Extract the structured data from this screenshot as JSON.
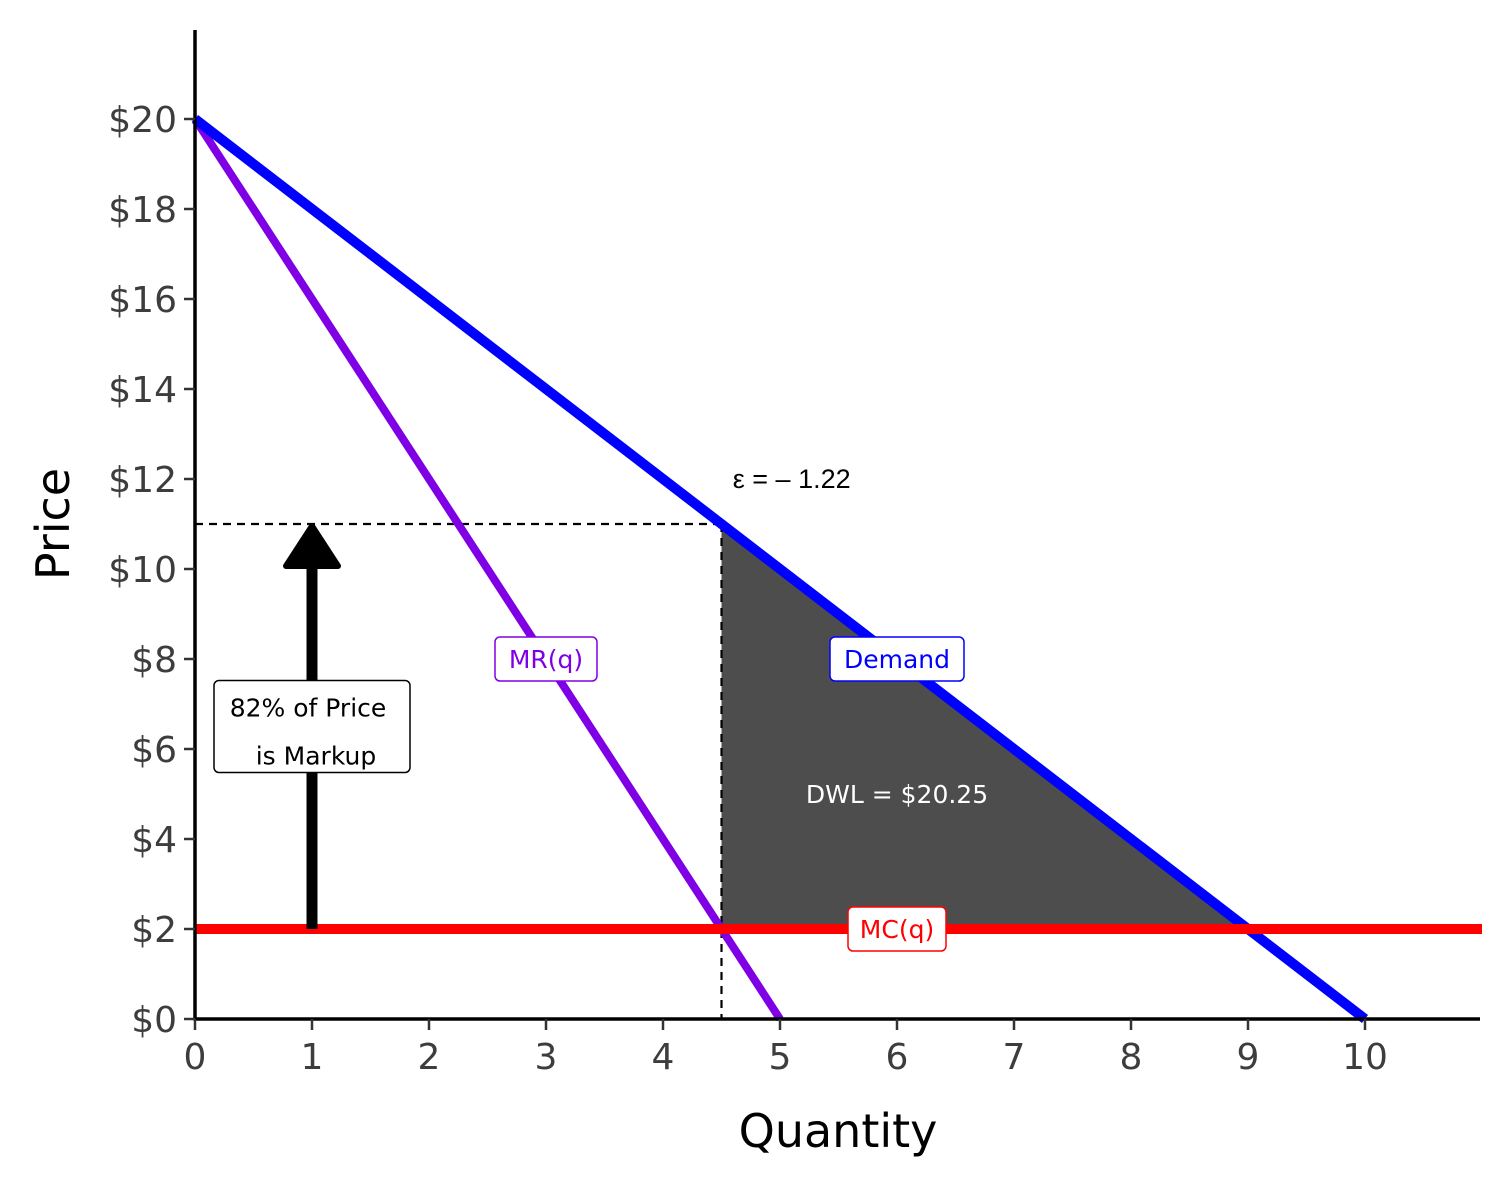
{
  "chart_data": {
    "type": "line",
    "xlabel": "Quantity",
    "ylabel": "Price",
    "xlim": [
      0,
      11
    ],
    "ylim": [
      0,
      22
    ],
    "x_ticks": [
      "0",
      "1",
      "2",
      "3",
      "4",
      "5",
      "6",
      "7",
      "8",
      "9",
      "10"
    ],
    "y_ticks": [
      "$0",
      "$2",
      "$4",
      "$6",
      "$8",
      "$10",
      "$12",
      "$14",
      "$16",
      "$18",
      "$20"
    ],
    "grid": false,
    "series": [
      {
        "key": "demand",
        "color": "#0000FF",
        "x": [
          0,
          10
        ],
        "y": [
          20,
          0
        ]
      },
      {
        "key": "mr",
        "color": "#8000E6",
        "x": [
          0,
          5
        ],
        "y": [
          20,
          0
        ]
      },
      {
        "key": "mc",
        "color": "#FF0000",
        "x": [
          0,
          11
        ],
        "y": [
          2,
          2
        ]
      }
    ],
    "dwl_region": {
      "color": "#4D4D4D",
      "points": [
        [
          4.5,
          11
        ],
        [
          9,
          2
        ],
        [
          4.5,
          2
        ]
      ]
    },
    "monopoly_point": {
      "q": 4.5,
      "p": 11
    },
    "markup_arrow": {
      "x": 1,
      "from": 2,
      "to": 11
    },
    "labels": {
      "demand": {
        "text": "Demand",
        "x": 6,
        "y": 8,
        "color": "#0000FF"
      },
      "mr": {
        "text": "MR(q)",
        "x": 3,
        "y": 8,
        "color": "#8000E6"
      },
      "mc": {
        "text": "MC(q)",
        "x": 6,
        "y": 2,
        "color": "#FF0000"
      },
      "markup": {
        "line1": "82% of Price",
        "line2": "is Markup",
        "x": 1,
        "y": 6.5
      },
      "dwl": {
        "text": "DWL = $20.25",
        "x": 6,
        "y": 5,
        "color": "#FFFFFF"
      },
      "elasticity": {
        "text": "ε = – 1.22",
        "x": 5.1,
        "y": 12
      }
    }
  }
}
